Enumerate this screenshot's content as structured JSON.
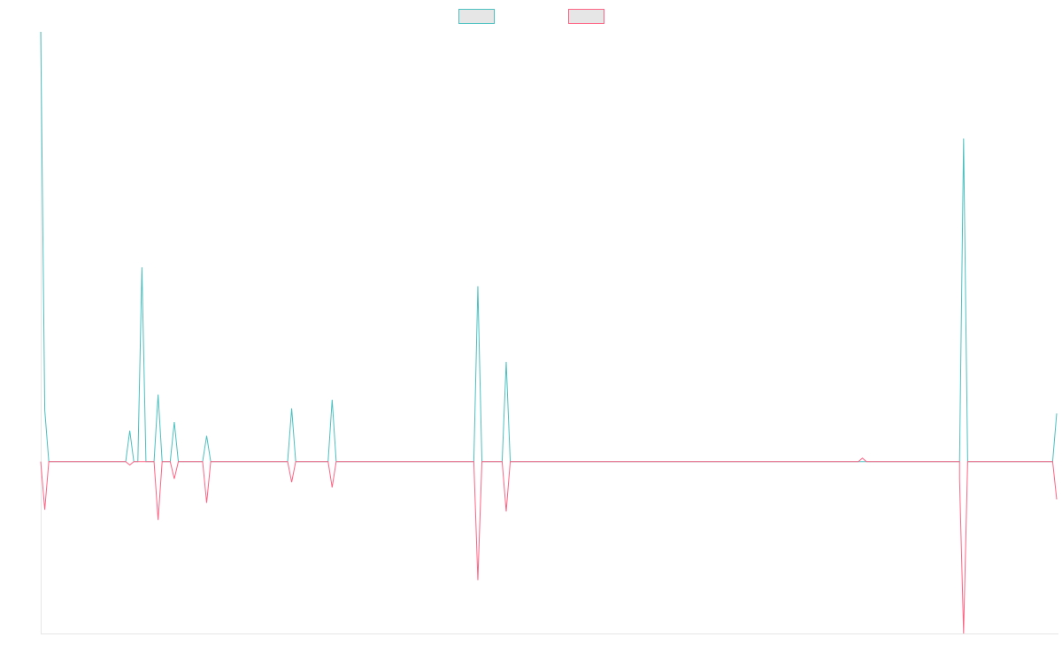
{
  "chart_data": {
    "type": "line",
    "title": "",
    "xlabel": "",
    "ylabel": "",
    "grid": false,
    "legend": {
      "position": "top-center",
      "show_labels": false
    },
    "ylim": [
      -100,
      250
    ],
    "x_count": 252,
    "series": [
      {
        "color": "#4bc0c0",
        "fill": "#e6e6e6",
        "points": [
          [
            0,
            250
          ],
          [
            1,
            30
          ],
          [
            2,
            0
          ],
          [
            21,
            0
          ],
          [
            22,
            18
          ],
          [
            23,
            0
          ],
          [
            24,
            0
          ],
          [
            25,
            113
          ],
          [
            26,
            0
          ],
          [
            28,
            0
          ],
          [
            29,
            39
          ],
          [
            30,
            0
          ],
          [
            32,
            0
          ],
          [
            33,
            23
          ],
          [
            34,
            0
          ],
          [
            40,
            0
          ],
          [
            41,
            15
          ],
          [
            42,
            0
          ],
          [
            61,
            0
          ],
          [
            62,
            31
          ],
          [
            63,
            0
          ],
          [
            71,
            0
          ],
          [
            72,
            36
          ],
          [
            73,
            0
          ],
          [
            107,
            0
          ],
          [
            108,
            102
          ],
          [
            109,
            0
          ],
          [
            114,
            0
          ],
          [
            115,
            58
          ],
          [
            116,
            0
          ],
          [
            202,
            0
          ],
          [
            203,
            0
          ],
          [
            204,
            0
          ],
          [
            227,
            0
          ],
          [
            228,
            188
          ],
          [
            229,
            0
          ],
          [
            250,
            0
          ],
          [
            251,
            28
          ]
        ]
      },
      {
        "color": "#ff6384",
        "fill": "#e6e6e6",
        "points": [
          [
            0,
            0
          ],
          [
            1,
            -28
          ],
          [
            2,
            0
          ],
          [
            21,
            0
          ],
          [
            22,
            -2
          ],
          [
            23,
            0
          ],
          [
            24,
            0
          ],
          [
            25,
            0
          ],
          [
            26,
            0
          ],
          [
            28,
            0
          ],
          [
            29,
            -34
          ],
          [
            30,
            0
          ],
          [
            32,
            0
          ],
          [
            33,
            -10
          ],
          [
            34,
            0
          ],
          [
            40,
            0
          ],
          [
            41,
            -24
          ],
          [
            42,
            0
          ],
          [
            61,
            0
          ],
          [
            62,
            -12
          ],
          [
            63,
            0
          ],
          [
            71,
            0
          ],
          [
            72,
            -15
          ],
          [
            73,
            0
          ],
          [
            107,
            0
          ],
          [
            108,
            -69
          ],
          [
            109,
            0
          ],
          [
            114,
            0
          ],
          [
            115,
            -29
          ],
          [
            116,
            0
          ],
          [
            202,
            0
          ],
          [
            203,
            2
          ],
          [
            204,
            0
          ],
          [
            227,
            0
          ],
          [
            227,
            -10
          ],
          [
            228,
            -100
          ],
          [
            229,
            0
          ],
          [
            250,
            0
          ],
          [
            251,
            -22
          ]
        ]
      }
    ]
  }
}
